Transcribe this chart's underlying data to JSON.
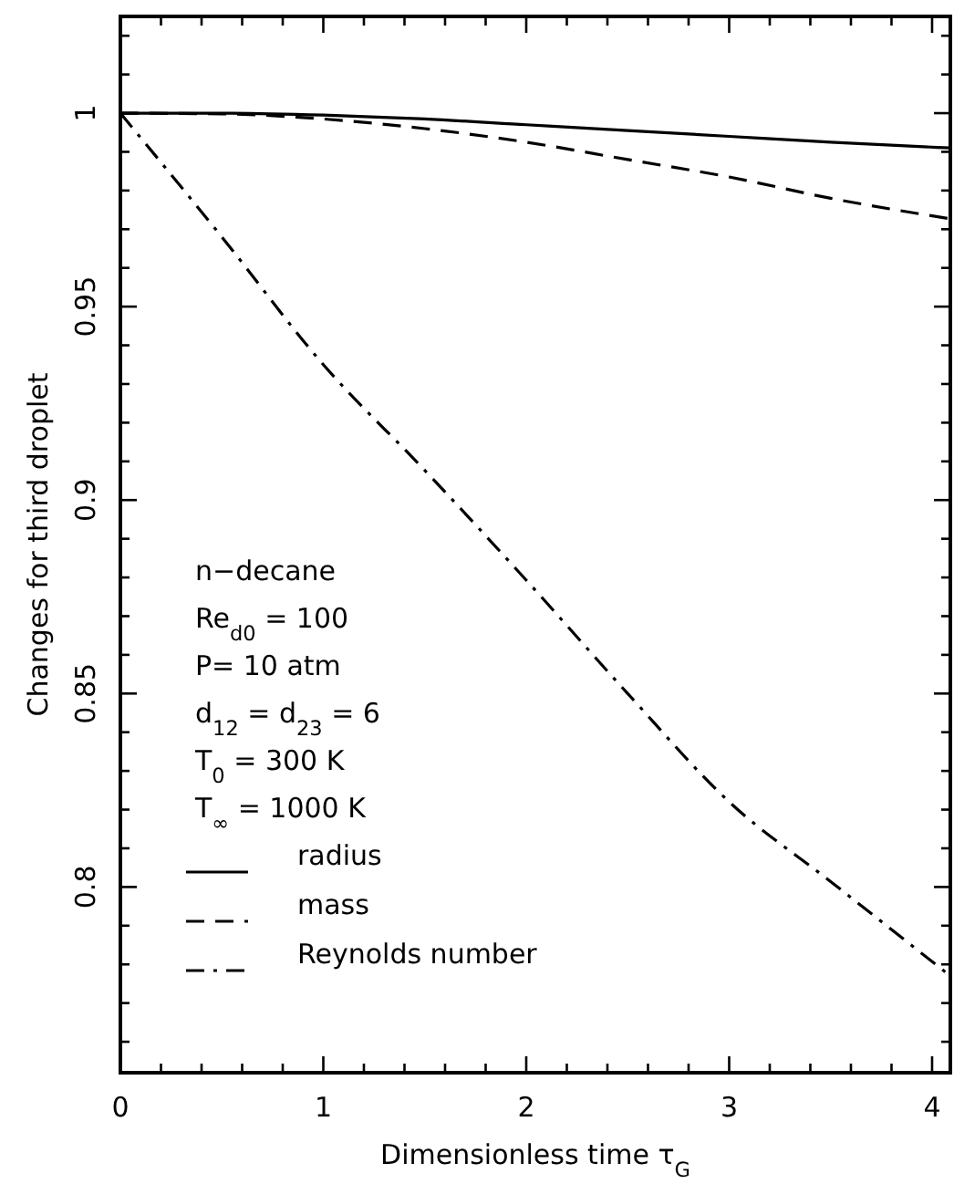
{
  "chart_data": {
    "type": "line",
    "xlabel": "Dimensionless time τ$_{G}$",
    "ylabel": "Changes for third droplet",
    "xlim": [
      0,
      4.09
    ],
    "ylim": [
      0.752,
      1.025
    ],
    "xticks": [
      0,
      {
        "value": 0.2,
        "label": null
      },
      {
        "value": 0.4,
        "label": null
      },
      {
        "value": 0.6,
        "label": null
      },
      {
        "value": 0.8,
        "label": null
      },
      1,
      {
        "value": 1.2,
        "label": null
      },
      {
        "value": 1.4,
        "label": null
      },
      {
        "value": 1.6,
        "label": null
      },
      {
        "value": 1.8,
        "label": null
      },
      2,
      {
        "value": 2.2,
        "label": null
      },
      {
        "value": 2.4,
        "label": null
      },
      {
        "value": 2.6,
        "label": null
      },
      {
        "value": 2.8,
        "label": null
      },
      3,
      {
        "value": 3.2,
        "label": null
      },
      {
        "value": 3.4,
        "label": null
      },
      {
        "value": 3.6,
        "label": null
      },
      {
        "value": 3.8,
        "label": null
      },
      4
    ],
    "yticks": [
      {
        "value": 0.76,
        "label": null
      },
      {
        "value": 0.77,
        "label": null
      },
      {
        "value": 0.78,
        "label": null
      },
      {
        "value": 0.79,
        "label": null
      },
      0.8,
      {
        "value": 0.81,
        "label": null
      },
      {
        "value": 0.82,
        "label": null
      },
      {
        "value": 0.83,
        "label": null
      },
      {
        "value": 0.84,
        "label": null
      },
      0.85,
      {
        "value": 0.86,
        "label": null
      },
      {
        "value": 0.87,
        "label": null
      },
      {
        "value": 0.88,
        "label": null
      },
      {
        "value": 0.89,
        "label": null
      },
      0.9,
      {
        "value": 0.91,
        "label": null
      },
      {
        "value": 0.92,
        "label": null
      },
      {
        "value": 0.93,
        "label": null
      },
      {
        "value": 0.94,
        "label": null
      },
      0.95,
      {
        "value": 0.96,
        "label": null
      },
      {
        "value": 0.97,
        "label": null
      },
      {
        "value": 0.98,
        "label": null
      },
      {
        "value": 0.99,
        "label": null
      },
      1,
      {
        "value": 1.01,
        "label": null
      },
      {
        "value": 1.02,
        "label": null
      }
    ],
    "x": [
      0,
      0.5,
      1,
      1.5,
      2,
      2.5,
      3,
      3.5,
      4.09
    ],
    "series": [
      {
        "name": "radius",
        "color": "#000000",
        "line_style": "solid",
        "values": [
          1,
          1,
          0.9995,
          0.9985,
          0.997,
          0.9955,
          0.994,
          0.9925,
          0.991
        ]
      },
      {
        "name": "mass",
        "color": "#000000",
        "line_style": "dashed",
        "values": [
          1,
          0.9998,
          0.9985,
          0.996,
          0.9925,
          0.988,
          0.9835,
          0.978,
          0.9727
        ]
      },
      {
        "name": "Reynolds number",
        "color": "#000000",
        "line_style": "dashdot",
        "values": [
          1,
          0.968,
          0.935,
          0.9077,
          0.8793,
          0.85,
          0.822,
          0.8014,
          0.777
        ]
      }
    ],
    "annotations": [
      "n−decane",
      "Re$_{d0}$ = 100",
      "P= 10 atm",
      "d$_{12}$ = d$_{23}$ = 6",
      "T$_{0}$ = 300 K",
      "T$_{∞}$ = 1000 K"
    ],
    "legend": "bottom left",
    "grid": false
  }
}
